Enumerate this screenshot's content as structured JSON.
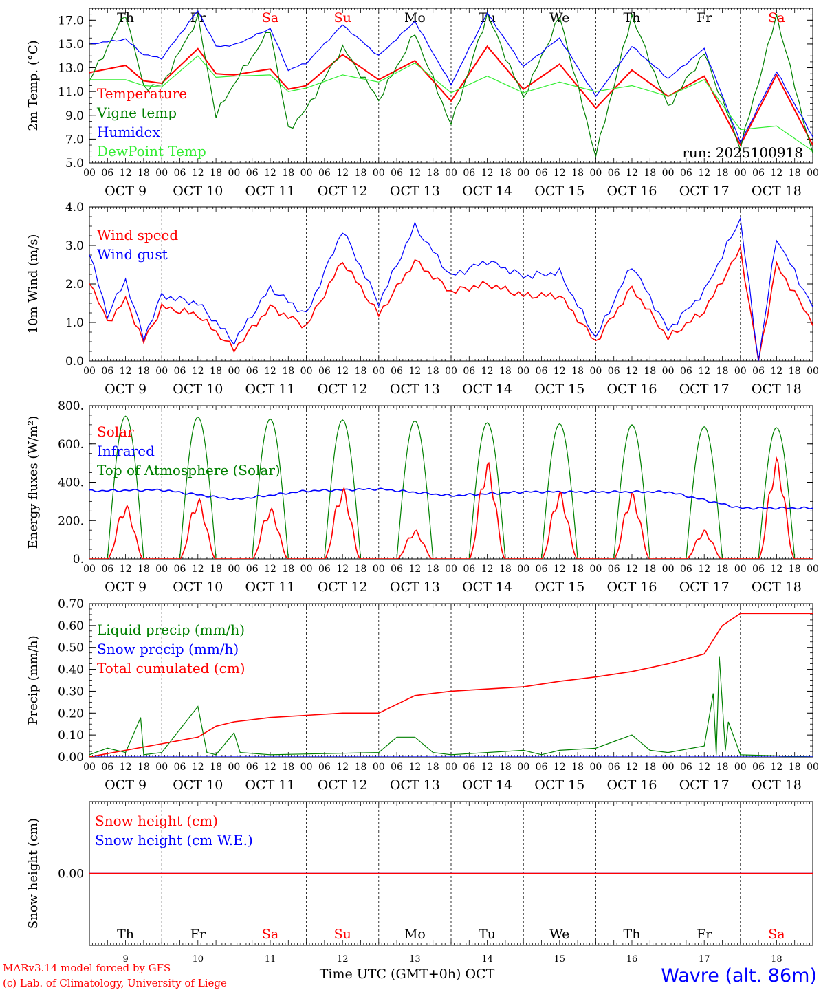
{
  "run_label": "run: 2025100918",
  "footer": {
    "credit1": "MARv3.14 model forced by GFS",
    "credit2": "(c) Lab. of Climatology, University of Liege",
    "station": "Wavre (alt. 86m)",
    "xlabel": "Time UTC (GMT+0h) OCT"
  },
  "colors": {
    "red": "#ff0000",
    "green": "#008000",
    "blue": "#0000ff",
    "lightgreen": "#33ee33"
  },
  "days": [
    {
      "name": "Th",
      "weekend": false,
      "date": "OCT  9",
      "num": "9"
    },
    {
      "name": "Fr",
      "weekend": false,
      "date": "OCT 10",
      "num": "10"
    },
    {
      "name": "Sa",
      "weekend": true,
      "date": "OCT 11",
      "num": "11"
    },
    {
      "name": "Su",
      "weekend": true,
      "date": "OCT 12",
      "num": "12"
    },
    {
      "name": "Mo",
      "weekend": false,
      "date": "OCT 13",
      "num": "13"
    },
    {
      "name": "Tu",
      "weekend": false,
      "date": "OCT 14",
      "num": "14"
    },
    {
      "name": "We",
      "weekend": false,
      "date": "OCT 15",
      "num": "15"
    },
    {
      "name": "Th",
      "weekend": false,
      "date": "OCT 16",
      "num": "16"
    },
    {
      "name": "Fr",
      "weekend": false,
      "date": "OCT 17",
      "num": "17"
    },
    {
      "name": "Sa",
      "weekend": true,
      "date": "OCT 18",
      "num": "18"
    }
  ],
  "hour_ticks": [
    "00",
    "06",
    "12",
    "18"
  ],
  "chart_data": [
    {
      "type": "line",
      "ylabel": "2m Temp. (°C)",
      "ylim": [
        5,
        18
      ],
      "yticks": [
        "5.0",
        "7.0",
        "9.0",
        "11.0",
        "13.0",
        "15.0",
        "17.0"
      ],
      "ytick_values": [
        5,
        7,
        9,
        11,
        13,
        15,
        17
      ],
      "x": [
        0,
        12,
        18,
        24,
        36,
        42,
        48,
        60,
        66,
        72,
        84,
        96,
        108,
        120,
        132,
        144,
        156,
        168,
        180,
        192,
        204,
        216,
        228,
        240
      ],
      "series": [
        {
          "name": "Temperature",
          "color": "#ff0000",
          "values": [
            12.6,
            13.2,
            11.9,
            11.7,
            14.6,
            12.5,
            12.4,
            12.9,
            11.2,
            11.5,
            14.1,
            12.0,
            13.6,
            10.2,
            14.8,
            11.2,
            13.3,
            9.6,
            12.8,
            10.6,
            12.3,
            6.5,
            12.4,
            6.5
          ]
        },
        {
          "name": "Vigne temp",
          "color": "#008000",
          "values": [
            11.9,
            17.6,
            11.4,
            11.5,
            17.2,
            9.0,
            11.7,
            16.2,
            7.8,
            9.5,
            14.7,
            10.3,
            15.9,
            8.2,
            17.5,
            10.5,
            17.3,
            5.6,
            17.4,
            9.7,
            14.2,
            6.3,
            17.4,
            5.6
          ]
        },
        {
          "name": "Humidex",
          "color": "#0000ff",
          "values": [
            15.0,
            15.4,
            14.1,
            13.8,
            17.8,
            14.8,
            14.9,
            16.3,
            12.8,
            13.4,
            16.6,
            14.0,
            16.9,
            11.6,
            17.6,
            13.1,
            15.5,
            10.6,
            14.8,
            12.1,
            14.6,
            6.7,
            12.7,
            7.2
          ]
        },
        {
          "name": "DewPoint Temp",
          "color": "#33ee33",
          "values": [
            12.0,
            12.0,
            11.5,
            11.4,
            14.0,
            12.2,
            12.3,
            12.4,
            11.0,
            11.3,
            12.4,
            11.8,
            13.4,
            10.9,
            12.3,
            10.9,
            11.8,
            11.0,
            11.5,
            10.6,
            12.0,
            7.8,
            8.1,
            6.0
          ]
        }
      ]
    },
    {
      "type": "line",
      "ylabel": "10m Wind (m/s)",
      "ylim": [
        0,
        4
      ],
      "yticks": [
        "0.0",
        "1.0",
        "2.0",
        "3.0",
        "4.0"
      ],
      "ytick_values": [
        0,
        1,
        2,
        3,
        4
      ],
      "x": [
        0,
        6,
        12,
        18,
        24,
        36,
        48,
        60,
        72,
        84,
        96,
        108,
        120,
        132,
        144,
        156,
        168,
        180,
        192,
        204,
        216,
        222,
        228,
        240
      ],
      "series": [
        {
          "name": "Wind speed",
          "color": "#ff0000",
          "values": [
            2.1,
            1.0,
            1.6,
            0.5,
            1.4,
            1.2,
            0.3,
            1.4,
            0.9,
            2.6,
            1.2,
            2.6,
            1.8,
            2.0,
            1.7,
            1.7,
            0.5,
            1.9,
            0.6,
            1.3,
            2.9,
            0.0,
            2.5,
            1.0
          ]
        },
        {
          "name": "Wind gust",
          "color": "#0000ff",
          "values": [
            2.8,
            1.2,
            2.1,
            0.6,
            1.7,
            1.5,
            0.5,
            1.9,
            1.2,
            3.4,
            1.5,
            3.5,
            2.2,
            2.6,
            2.2,
            2.3,
            0.6,
            2.5,
            0.8,
            1.8,
            3.7,
            0.0,
            3.2,
            1.4
          ]
        }
      ]
    },
    {
      "type": "line",
      "ylabel": "Energy fluxes (W/m²)",
      "ylim": [
        0,
        800
      ],
      "yticks": [
        "0.",
        "200.",
        "400.",
        "600.",
        "800."
      ],
      "ytick_values": [
        0,
        200,
        400,
        600,
        800
      ],
      "sunrise_hour": 6,
      "sunset_hour": 18,
      "toa_peaks": [
        745,
        740,
        730,
        725,
        720,
        710,
        705,
        700,
        690,
        685
      ],
      "solar_peaks": [
        255,
        285,
        240,
        335,
        135,
        455,
        315,
        310,
        135,
        470
      ],
      "infrared": [
        355,
        360,
        310,
        355,
        365,
        330,
        350,
        350,
        350,
        265
      ],
      "series": [
        {
          "name": "Solar",
          "color": "#ff0000"
        },
        {
          "name": "Infrared",
          "color": "#0000ff"
        },
        {
          "name": "Top of Atmosphere (Solar)",
          "color": "#008000"
        }
      ]
    },
    {
      "type": "line",
      "ylabel": "Precip (mm/h)",
      "ylim": [
        0,
        0.7
      ],
      "yticks": [
        "0.00",
        "0.10",
        "0.20",
        "0.30",
        "0.40",
        "0.50",
        "0.60",
        "0.70"
      ],
      "ytick_values": [
        0,
        0.1,
        0.2,
        0.3,
        0.4,
        0.5,
        0.6,
        0.7
      ],
      "series": [
        {
          "name": "Liquid precip (mm/h)",
          "color": "#008000",
          "x": [
            0,
            6,
            12,
            17,
            18,
            24,
            36,
            39,
            42,
            48,
            50,
            60,
            96,
            102,
            108,
            114,
            120,
            144,
            150,
            156,
            168,
            180,
            186,
            192,
            204,
            207,
            208,
            209,
            211,
            212,
            216,
            240
          ],
          "values": [
            0.01,
            0.04,
            0.02,
            0.18,
            0.01,
            0.02,
            0.23,
            0.02,
            0.01,
            0.11,
            0.02,
            0.01,
            0.02,
            0.09,
            0.09,
            0.02,
            0.01,
            0.03,
            0.01,
            0.03,
            0.04,
            0.1,
            0.03,
            0.02,
            0.05,
            0.29,
            0.01,
            0.46,
            0.03,
            0.16,
            0.01,
            0.0
          ]
        },
        {
          "name": "Snow precip (mm/h)",
          "color": "#0000ff",
          "x": [
            0,
            240
          ],
          "values": [
            0,
            0
          ]
        },
        {
          "name": "Total cumulated (cm)",
          "color": "#ff0000",
          "x": [
            0,
            12,
            24,
            36,
            42,
            48,
            60,
            72,
            84,
            96,
            108,
            120,
            132,
            144,
            156,
            168,
            180,
            192,
            204,
            210,
            216,
            240
          ],
          "values": [
            0.0,
            0.03,
            0.06,
            0.09,
            0.14,
            0.16,
            0.18,
            0.19,
            0.2,
            0.2,
            0.28,
            0.3,
            0.31,
            0.32,
            0.345,
            0.365,
            0.39,
            0.425,
            0.47,
            0.6,
            0.655,
            0.655
          ]
        }
      ]
    },
    {
      "type": "line",
      "ylabel": "Snow height (cm)",
      "yticks": [
        "0.00"
      ],
      "ytick_values": [
        0
      ],
      "series": [
        {
          "name": "Snow height (cm)",
          "color": "#ff0000",
          "x": [
            0,
            240
          ],
          "values": [
            0,
            0
          ]
        },
        {
          "name": "Snow height (cm W.E.)",
          "color": "#0000ff",
          "x": [
            0,
            240
          ],
          "values": [
            0,
            0
          ]
        }
      ]
    }
  ]
}
